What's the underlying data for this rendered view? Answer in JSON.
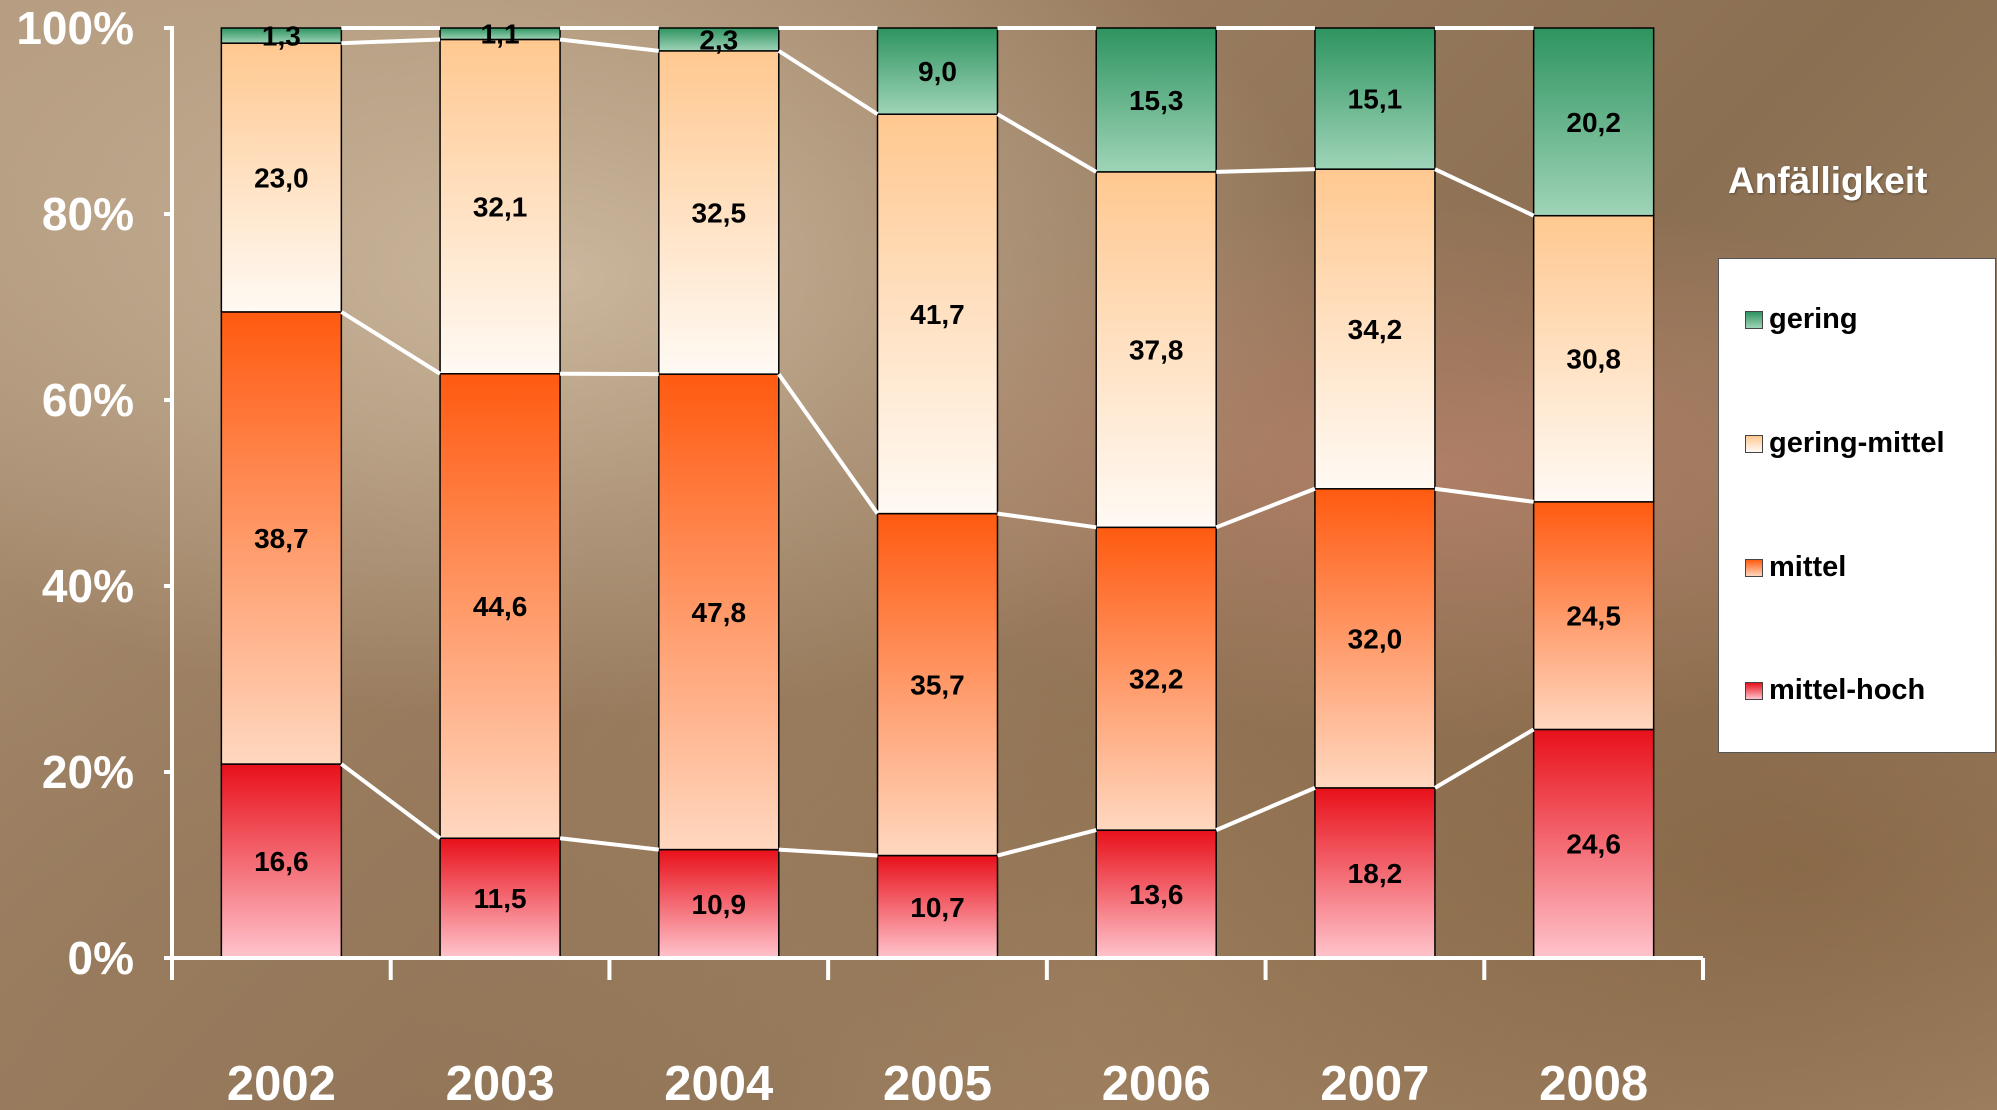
{
  "chart_data": {
    "type": "bar",
    "stacked": true,
    "normalized": true,
    "categories": [
      "2002",
      "2003",
      "2004",
      "2005",
      "2006",
      "2007",
      "2008"
    ],
    "series": [
      {
        "name": "mittel-hoch",
        "values": [
          16.6,
          11.5,
          10.9,
          10.7,
          13.6,
          18.2,
          24.6
        ],
        "colors": [
          "#ffc4cc",
          "#e8101a"
        ]
      },
      {
        "name": "mittel",
        "values": [
          38.7,
          44.6,
          47.8,
          35.7,
          32.2,
          32.0,
          24.5
        ],
        "colors": [
          "#ffd8c0",
          "#ff5a10"
        ]
      },
      {
        "name": "gering-mittel",
        "values": [
          23.0,
          32.1,
          32.5,
          41.7,
          37.8,
          34.2,
          30.8
        ],
        "colors": [
          "#fffaf4",
          "#ffc890"
        ]
      },
      {
        "name": "gering",
        "values": [
          1.3,
          1.1,
          2.3,
          9.0,
          15.3,
          15.1,
          20.2
        ],
        "colors": [
          "#9fd4b8",
          "#2e9460"
        ]
      }
    ],
    "value_labels": {
      "mittel-hoch": [
        "16,6",
        "11,5",
        "10,9",
        "10,7",
        "13,6",
        "18,2",
        "24,6"
      ],
      "mittel": [
        "38,7",
        "44,6",
        "47,8",
        "35,7",
        "32,2",
        "32,0",
        "24,5"
      ],
      "gering-mittel": [
        "23,0",
        "32,1",
        "32,5",
        "41,7",
        "37,8",
        "34,2",
        "30,8"
      ],
      "gering": [
        "1,3",
        "1,1",
        "2,3",
        "9,0",
        "15,3",
        "15,1",
        "20,2"
      ]
    },
    "y_tick_labels": [
      "0%",
      "20%",
      "40%",
      "60%",
      "80%",
      "100%"
    ],
    "ylim": [
      0,
      100
    ],
    "connector_lines": true,
    "legend_title": "Anfälligkeit",
    "legend_order": [
      "gering",
      "gering-mittel",
      "mittel",
      "mittel-hoch"
    ],
    "legend_position": "right"
  }
}
